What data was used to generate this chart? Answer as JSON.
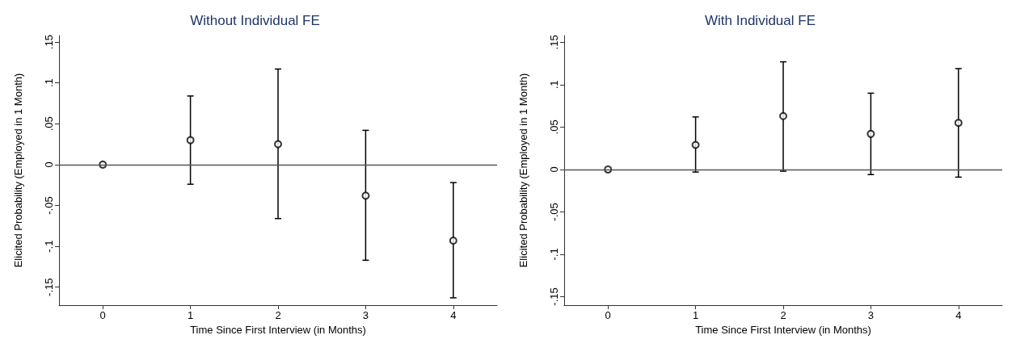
{
  "chart_data": [
    {
      "type": "scatter",
      "title": "Without Individual FE",
      "xlabel": "Time Since First Interview (in Months)",
      "ylabel": "Elicited Probability (Employed in 1 Month)",
      "x": [
        0,
        1,
        2,
        3,
        4
      ],
      "series": [
        {
          "color": "#000000",
          "values": [
            0,
            0.03,
            0.025,
            -0.038,
            -0.093
          ],
          "errors": [
            null,
            [
              -0.024,
              0.084
            ],
            [
              -0.066,
              0.117
            ],
            [
              -0.117,
              0.042
            ],
            [
              -0.163,
              -0.022
            ]
          ]
        }
      ],
      "xlim": [
        -0.5,
        4.5
      ],
      "xticks": [
        0,
        1,
        2,
        3,
        4
      ],
      "ylim": [
        -0.172,
        0.158
      ],
      "yticks": [
        {
          "value": -0.15,
          "label": "-.15"
        },
        {
          "value": -0.1,
          "label": "-.1"
        },
        {
          "value": -0.05,
          "label": "-.05"
        },
        0,
        {
          "value": 0.05,
          "label": ".05"
        },
        {
          "value": 0.1,
          "label": ".1"
        },
        {
          "value": 0.15,
          "label": ".15"
        }
      ],
      "ref_lines": [
        {
          "axis": "y",
          "value": 0,
          "color": "#555555"
        }
      ],
      "marker": "circle",
      "grid": false
    },
    {
      "type": "scatter",
      "title": "With Individual FE",
      "xlabel": "Time Since First Interview (in Months)",
      "ylabel": "Elicited Probability (Employed in 1 Month)",
      "x": [
        0,
        1,
        2,
        3,
        4
      ],
      "series": [
        {
          "color": "#000000",
          "values": [
            0,
            0.029,
            0.063,
            0.042,
            0.055
          ],
          "errors": [
            null,
            [
              -0.003,
              0.062
            ],
            [
              -0.002,
              0.127
            ],
            [
              -0.006,
              0.09
            ],
            [
              -0.009,
              0.119
            ]
          ]
        }
      ],
      "xlim": [
        -0.5,
        4.5
      ],
      "xticks": [
        0,
        1,
        2,
        3,
        4
      ],
      "ylim": [
        -0.16,
        0.158
      ],
      "yticks": [
        {
          "value": -0.15,
          "label": "-.15"
        },
        {
          "value": -0.1,
          "label": "-.1"
        },
        {
          "value": -0.05,
          "label": "-.05"
        },
        0,
        {
          "value": 0.05,
          "label": ".05"
        },
        {
          "value": 0.1,
          "label": ".1"
        },
        {
          "value": 0.15,
          "label": ".15"
        }
      ],
      "ref_lines": [
        {
          "axis": "y",
          "value": 0,
          "color": "#555555"
        }
      ],
      "marker": "circle",
      "grid": false
    }
  ]
}
